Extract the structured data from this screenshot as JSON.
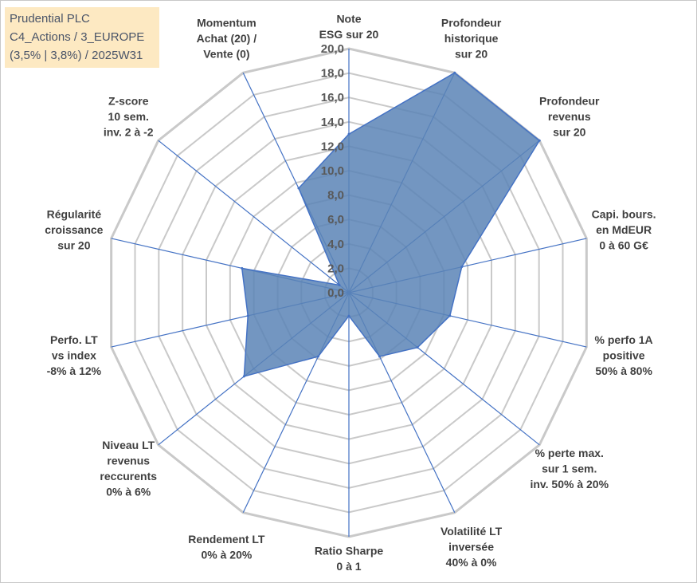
{
  "header": {
    "lines": [
      "Prudential PLC",
      "C4_Actions / 3_EUROPE",
      "(3,5% | 3,8%) / 2025W31"
    ]
  },
  "colors": {
    "fill": "#5b84b6",
    "stroke": "#4472c4",
    "grid": "#c9c9c9",
    "spoke": "#4472c4",
    "title_bg": "#fde9c2"
  },
  "chart_data": {
    "type": "radar",
    "title": "",
    "rmin": 0,
    "rmax": 20,
    "tick_step": 2,
    "grid": true,
    "tick_labels": [
      "0,0",
      "2,0",
      "4,0",
      "6,0",
      "8,0",
      "10,0",
      "12,0",
      "14,0",
      "16,0",
      "18,0",
      "20,0"
    ],
    "axes": [
      [
        "Note",
        "ESG sur 20"
      ],
      [
        "Profondeur",
        "historique",
        "sur 20"
      ],
      [
        "Profondeur",
        "revenus",
        "sur 20"
      ],
      [
        "Capi. bours.",
        "en MdEUR",
        "0 à 60 G€"
      ],
      [
        "% perfo 1A",
        "positive",
        "50% à 80%"
      ],
      [
        "% perte max.",
        "sur 1 sem.",
        "inv. 50% à 20%"
      ],
      [
        "Volatilité LT",
        "inversée",
        "40% à 0%"
      ],
      [
        "Ratio Sharpe",
        "0 à 1"
      ],
      [
        "Rendement LT",
        "0% à 20%"
      ],
      [
        "Niveau LT",
        "revenus",
        "reccurents",
        "0% à 6%"
      ],
      [
        "Perfo. LT",
        "vs index",
        "-8% à 12%"
      ],
      [
        "Régularité",
        "croissance",
        "sur 20"
      ],
      [
        "Z-score",
        "10 sem.",
        "inv. 2 à -2"
      ],
      [
        "Momentum",
        "Achat (20) /",
        "Vente (0)"
      ]
    ],
    "series": [
      {
        "values": [
          13.0,
          20.0,
          20.0,
          9.5,
          8.5,
          7.2,
          5.8,
          1.9,
          5.8,
          11.0,
          8.5,
          9.0,
          1.0,
          9.5
        ]
      }
    ]
  }
}
